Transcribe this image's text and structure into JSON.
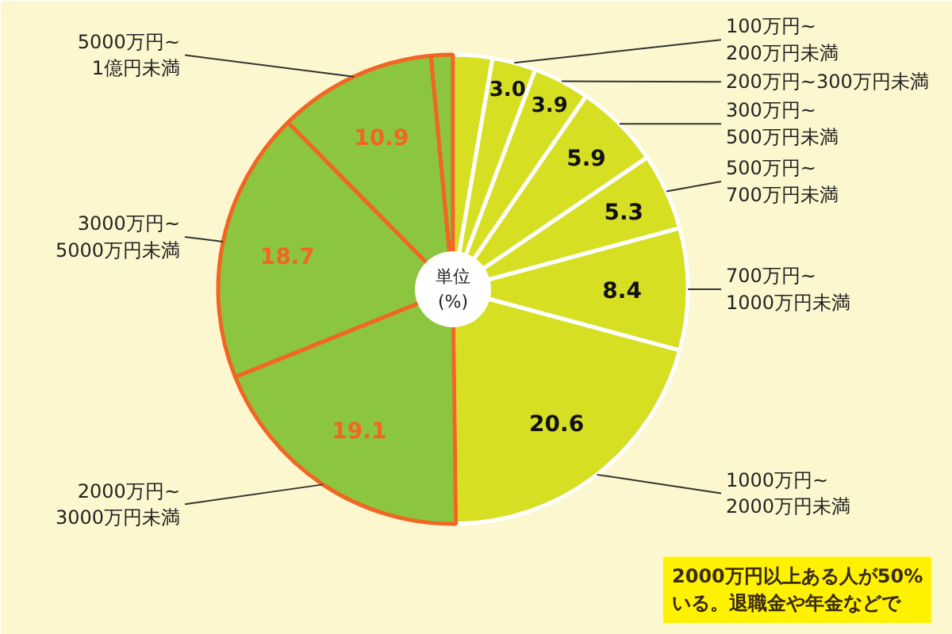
{
  "chart_data": {
    "type": "pie",
    "categories": [
      null,
      "100万円~\n200万円未満",
      "200万円~300万円未満",
      "300万円~\n500万円未満",
      "500万円~\n700万円未満",
      "700万円~\n1000万円未満",
      "1000万円~\n2000万円未満",
      "2000万円~\n3000万円未満",
      "3000万円~\n5000万円未満",
      "5000万円~\n1億円未満",
      null
    ],
    "values": [
      2.7,
      3.0,
      3.9,
      5.9,
      5.3,
      8.4,
      20.6,
      19.1,
      18.7,
      10.9,
      1.5
    ],
    "colors": [
      "#d7df23",
      "#d7df23",
      "#d7df23",
      "#d7df23",
      "#d7df23",
      "#d7df23",
      "#d7df23",
      "#8cc63f",
      "#8cc63f",
      "#8cc63f",
      "#8cc63f"
    ],
    "value_labels": [
      null,
      "3.0",
      "3.9",
      "5.9",
      "5.3",
      "8.4",
      "20.6",
      "19.1",
      "18.7",
      "10.9",
      null
    ],
    "annotations": [
      "単位\n(%)",
      "2000万円以上ある人が50%\nいる。退職金や年金などで"
    ]
  }
}
